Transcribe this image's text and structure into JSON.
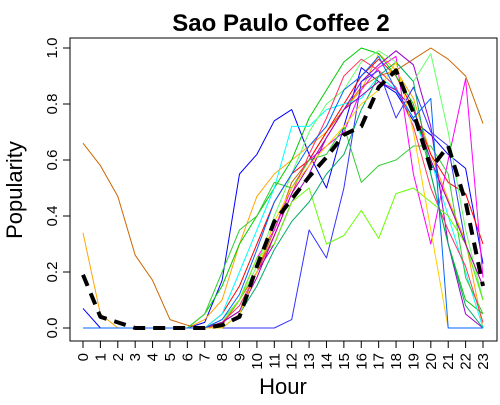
{
  "chart_data": {
    "type": "line",
    "title": "Sao Paulo Coffee 2",
    "xlabel": "Hour",
    "ylabel": "Popularity",
    "x": [
      0,
      1,
      2,
      3,
      4,
      5,
      6,
      7,
      8,
      9,
      10,
      11,
      12,
      13,
      14,
      15,
      16,
      17,
      18,
      19,
      20,
      21,
      22,
      23
    ],
    "xlim": [
      0,
      23
    ],
    "ylim": [
      0,
      1
    ],
    "xticks": [
      "0",
      "1",
      "2",
      "3",
      "4",
      "5",
      "6",
      "7",
      "8",
      "9",
      "10",
      "11",
      "12",
      "13",
      "14",
      "15",
      "16",
      "17",
      "18",
      "19",
      "20",
      "21",
      "22",
      "23"
    ],
    "yticks": [
      "0.0",
      "0.2",
      "0.4",
      "0.6",
      "0.8",
      "1.0"
    ],
    "grid": false,
    "legend": "none",
    "series": [
      {
        "color": "#0000ff",
        "values": [
          0.07,
          0,
          0,
          0,
          0,
          0,
          0,
          0.02,
          0.17,
          0.55,
          0.62,
          0.74,
          0.78,
          0.62,
          0.5,
          0.72,
          0.93,
          0.88,
          0.84,
          0.74,
          0.69,
          0.62,
          0.57,
          0.23
        ]
      },
      {
        "color": "#ffa500",
        "values": [
          0.34,
          0.05,
          0,
          0,
          0,
          0,
          0,
          0.03,
          0.1,
          0.3,
          0.47,
          0.55,
          0.6,
          0.65,
          0.7,
          0.78,
          0.85,
          0.98,
          0.92,
          0.82,
          0.62,
          0.46,
          0.31,
          0
        ]
      },
      {
        "color": "#cc6600",
        "values": [
          0.66,
          0.58,
          0.47,
          0.26,
          0.17,
          0.03,
          0.01,
          0,
          0.01,
          0.1,
          0.2,
          0.35,
          0.52,
          0.6,
          0.7,
          0.78,
          0.86,
          0.9,
          0.92,
          0.96,
          1.0,
          0.96,
          0.9,
          0.73
        ]
      },
      {
        "color": "#ff0000",
        "values": [
          0,
          0,
          0,
          0,
          0,
          0,
          0,
          0,
          0.05,
          0.15,
          0.3,
          0.45,
          0.55,
          0.6,
          0.7,
          0.8,
          0.9,
          0.96,
          0.9,
          0.78,
          0.62,
          0.52,
          0.48,
          0.3
        ]
      },
      {
        "color": "#00cc00",
        "values": [
          0,
          0,
          0,
          0,
          0,
          0,
          0,
          0.05,
          0.15,
          0.3,
          0.4,
          0.5,
          0.6,
          0.75,
          0.85,
          0.95,
          1.0,
          0.98,
          0.9,
          0.8,
          0.55,
          0.3,
          0.1,
          0.05
        ]
      },
      {
        "color": "#00ffff",
        "values": [
          0,
          0,
          0,
          0,
          0,
          0,
          0,
          0,
          0.05,
          0.2,
          0.35,
          0.5,
          0.72,
          0.72,
          0.78,
          0.8,
          0.82,
          0.9,
          0.85,
          0.75,
          0.6,
          0.4,
          0.2,
          0
        ]
      },
      {
        "color": "#ff00ff",
        "values": [
          0,
          0,
          0,
          0,
          0,
          0,
          0,
          0,
          0.03,
          0.1,
          0.25,
          0.35,
          0.5,
          0.6,
          0.65,
          0.7,
          0.85,
          0.93,
          0.97,
          0.55,
          0.3,
          0.6,
          0.89,
          0.18
        ]
      },
      {
        "color": "#9900cc",
        "values": [
          0,
          0,
          0,
          0,
          0,
          0,
          0,
          0,
          0.02,
          0.06,
          0.2,
          0.3,
          0.45,
          0.55,
          0.68,
          0.78,
          0.88,
          0.94,
          0.99,
          0.94,
          0.72,
          0.3,
          0.05,
          0
        ]
      },
      {
        "color": "#66ff66",
        "values": [
          0,
          0,
          0,
          0,
          0,
          0,
          0,
          0,
          0.03,
          0.1,
          0.22,
          0.4,
          0.55,
          0.7,
          0.8,
          0.85,
          0.95,
          0.99,
          0.95,
          0.88,
          0.98,
          0.7,
          0.35,
          0.1
        ]
      },
      {
        "color": "#3333ff",
        "values": [
          0,
          0,
          0,
          0,
          0,
          0,
          0,
          0,
          0,
          0,
          0,
          0,
          0.03,
          0.35,
          0.25,
          0.5,
          0.88,
          0.92,
          0.75,
          0.86,
          0.7,
          0.65,
          0.3,
          0.1
        ]
      },
      {
        "color": "#33cc33",
        "values": [
          0,
          0,
          0,
          0,
          0,
          0,
          0,
          0.05,
          0.2,
          0.35,
          0.4,
          0.52,
          0.5,
          0.6,
          0.62,
          0.72,
          0.52,
          0.58,
          0.6,
          0.65,
          0.65,
          0.55,
          0.18,
          0.05
        ]
      },
      {
        "color": "#66ff00",
        "values": [
          0,
          0,
          0,
          0,
          0,
          0,
          0,
          0,
          0.02,
          0.1,
          0.25,
          0.3,
          0.45,
          0.5,
          0.3,
          0.33,
          0.42,
          0.32,
          0.48,
          0.5,
          0.45,
          0.4,
          0.3,
          0.1
        ]
      },
      {
        "color": "#ff3366",
        "values": [
          0,
          0,
          0,
          0,
          0,
          0,
          0,
          0,
          0.02,
          0.08,
          0.2,
          0.33,
          0.48,
          0.62,
          0.75,
          0.9,
          0.96,
          0.92,
          0.86,
          0.72,
          0.5,
          0.35,
          0.22,
          0.02
        ]
      },
      {
        "color": "#00aa66",
        "values": [
          0,
          0,
          0,
          0,
          0,
          0,
          0,
          0,
          0,
          0.05,
          0.15,
          0.28,
          0.38,
          0.45,
          0.55,
          0.62,
          0.78,
          0.9,
          0.95,
          0.88,
          0.55,
          0.3,
          0.08,
          0
        ]
      },
      {
        "color": "#aa00aa",
        "values": [
          0,
          0,
          0,
          0,
          0,
          0,
          0,
          0,
          0.02,
          0.06,
          0.18,
          0.33,
          0.48,
          0.58,
          0.68,
          0.78,
          0.83,
          0.88,
          0.85,
          0.78,
          0.6,
          0.45,
          0.3,
          0.15
        ]
      },
      {
        "color": "#ffcc00",
        "values": [
          0,
          0,
          0,
          0,
          0,
          0,
          0,
          0,
          0,
          0.05,
          0.2,
          0.38,
          0.5,
          0.58,
          0.65,
          0.72,
          0.8,
          0.85,
          0.95,
          0.7,
          0.35,
          0,
          0,
          0
        ]
      },
      {
        "color": "#0066ff",
        "values": [
          0,
          0,
          0,
          0,
          0,
          0,
          0,
          0,
          0.03,
          0.12,
          0.28,
          0.45,
          0.55,
          0.65,
          0.72,
          0.85,
          0.9,
          0.97,
          0.85,
          0.75,
          0.82,
          0,
          0,
          0
        ]
      },
      {
        "color": "#000000",
        "dashed": true,
        "bold": true,
        "values": [
          0.19,
          0.04,
          0.02,
          0,
          0,
          0,
          0,
          0,
          0.01,
          0.04,
          0.22,
          0.38,
          0.46,
          0.54,
          0.61,
          0.69,
          0.72,
          0.86,
          0.92,
          0.77,
          0.57,
          0.65,
          0.45,
          0.15
        ]
      }
    ]
  }
}
